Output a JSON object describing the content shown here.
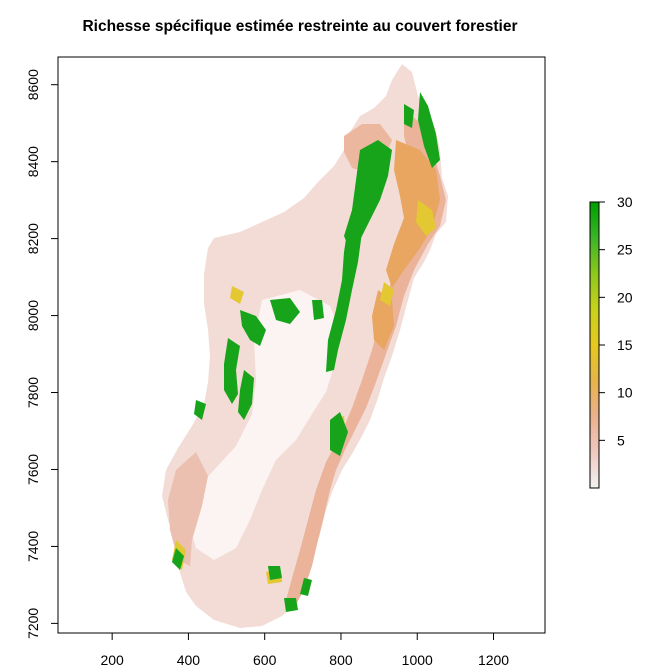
{
  "title": "Richesse spécifique estimée restreinte au couvert forestier",
  "x_axis": {
    "ticks": [
      200,
      400,
      600,
      800,
      1000,
      1200
    ],
    "range": [
      58,
      1335
    ]
  },
  "y_axis": {
    "ticks": [
      7200,
      7400,
      7600,
      7800,
      8000,
      8200,
      8400,
      8600
    ],
    "range": [
      7175,
      8672
    ]
  },
  "legend": {
    "ticks": [
      5,
      10,
      15,
      20,
      25,
      30
    ],
    "range": [
      0,
      30
    ],
    "colors": [
      "#f2f2f2",
      "#f0c9c0",
      "#ebb08e",
      "#e6b44a",
      "#e6c81e",
      "#c8d21a",
      "#8cc81e",
      "#3cb428",
      "#009e00"
    ]
  },
  "colors": {
    "background": "#ffffff",
    "land_low": "#f3dcd6",
    "land_mid": "#eab39a",
    "land_orange": "#e8a661",
    "yellow": "#e3c733",
    "green": "#17a31a"
  }
}
